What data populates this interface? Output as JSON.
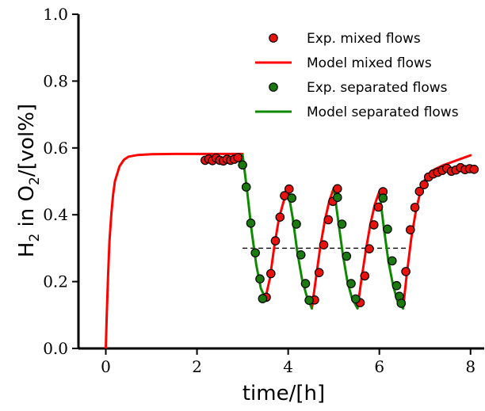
{
  "chart_data": {
    "type": "line",
    "xlabel": "time/[h]",
    "ylabel": {
      "prefix": "H",
      "sub1": "2",
      "mid": " in O",
      "sub2": "2",
      "suffix": "/[vol%]"
    },
    "xlim": [
      -0.6,
      8.3
    ],
    "ylim": [
      0.0,
      1.0
    ],
    "xticks": [
      0,
      2,
      4,
      6,
      8
    ],
    "xtick_labels": [
      "0",
      "2",
      "4",
      "6",
      "8"
    ],
    "yticks": [
      0.0,
      0.2,
      0.4,
      0.6,
      0.8,
      1.0
    ],
    "ytick_labels": [
      "0.0",
      "0.2",
      "0.4",
      "0.6",
      "0.8",
      "1.0"
    ],
    "grid": false,
    "legend_position": "top-right",
    "legend": [
      {
        "label": "Exp. mixed flows",
        "kind": "marker",
        "color": "#e8120f"
      },
      {
        "label": "Model mixed flows",
        "kind": "line",
        "color": "#ff0000"
      },
      {
        "label": "Exp. separated flows",
        "kind": "marker",
        "color": "#1a7a10"
      },
      {
        "label": "Model separated flows",
        "kind": "line",
        "color": "#0e8a00"
      }
    ],
    "reference_line": {
      "y": 0.3,
      "x": [
        3.0,
        6.6
      ],
      "style": "dashed",
      "color": "#000000"
    },
    "series": [
      {
        "id": "model_mixed",
        "kind": "line",
        "color": "#ff0000",
        "segments": [
          [
            [
              0.0,
              0.0
            ],
            [
              0.02,
              0.1
            ],
            [
              0.05,
              0.22
            ],
            [
              0.08,
              0.32
            ],
            [
              0.12,
              0.4
            ],
            [
              0.16,
              0.46
            ],
            [
              0.2,
              0.5
            ],
            [
              0.3,
              0.545
            ],
            [
              0.4,
              0.565
            ],
            [
              0.5,
              0.574
            ],
            [
              0.7,
              0.579
            ],
            [
              1.0,
              0.581
            ],
            [
              1.5,
              0.582
            ],
            [
              2.2,
              0.582
            ],
            [
              3.0,
              0.582
            ]
          ],
          [
            [
              3.5,
              0.15
            ],
            [
              3.6,
              0.21
            ],
            [
              3.7,
              0.31
            ],
            [
              3.8,
              0.39
            ],
            [
              3.9,
              0.44
            ],
            [
              4.0,
              0.47
            ]
          ],
          [
            [
              4.52,
              0.12
            ],
            [
              4.6,
              0.2
            ],
            [
              4.7,
              0.3
            ],
            [
              4.8,
              0.38
            ],
            [
              4.9,
              0.44
            ],
            [
              5.0,
              0.48
            ]
          ],
          [
            [
              5.52,
              0.12
            ],
            [
              5.6,
              0.2
            ],
            [
              5.7,
              0.29
            ],
            [
              5.8,
              0.37
            ],
            [
              5.9,
              0.43
            ],
            [
              6.0,
              0.47
            ]
          ],
          [
            [
              6.52,
              0.12
            ],
            [
              6.6,
              0.22
            ],
            [
              6.7,
              0.33
            ],
            [
              6.8,
              0.41
            ],
            [
              6.9,
              0.47
            ],
            [
              7.0,
              0.505
            ],
            [
              7.2,
              0.535
            ],
            [
              7.4,
              0.548
            ],
            [
              7.6,
              0.558
            ],
            [
              7.8,
              0.568
            ],
            [
              8.0,
              0.578
            ]
          ]
        ]
      },
      {
        "id": "model_separated",
        "kind": "line",
        "color": "#0e8a00",
        "segments": [
          [
            [
              3.0,
              0.58
            ],
            [
              3.1,
              0.47
            ],
            [
              3.2,
              0.35
            ],
            [
              3.3,
              0.25
            ],
            [
              3.4,
              0.18
            ],
            [
              3.5,
              0.15
            ]
          ],
          [
            [
              4.0,
              0.47
            ],
            [
              4.1,
              0.39
            ],
            [
              4.2,
              0.29
            ],
            [
              4.3,
              0.21
            ],
            [
              4.4,
              0.16
            ],
            [
              4.52,
              0.12
            ]
          ],
          [
            [
              5.0,
              0.48
            ],
            [
              5.1,
              0.38
            ],
            [
              5.2,
              0.28
            ],
            [
              5.3,
              0.2
            ],
            [
              5.4,
              0.15
            ],
            [
              5.52,
              0.12
            ]
          ],
          [
            [
              6.0,
              0.47
            ],
            [
              6.1,
              0.36
            ],
            [
              6.2,
              0.26
            ],
            [
              6.3,
              0.19
            ],
            [
              6.4,
              0.14
            ],
            [
              6.52,
              0.12
            ]
          ]
        ]
      },
      {
        "id": "exp_mixed",
        "kind": "scatter",
        "color": "#e8120f",
        "points": [
          [
            2.18,
            0.563
          ],
          [
            2.26,
            0.567
          ],
          [
            2.34,
            0.562
          ],
          [
            2.42,
            0.57
          ],
          [
            2.5,
            0.563
          ],
          [
            2.58,
            0.561
          ],
          [
            2.66,
            0.566
          ],
          [
            2.74,
            0.563
          ],
          [
            2.82,
            0.566
          ],
          [
            2.9,
            0.571
          ],
          [
            3.52,
            0.153
          ],
          [
            3.62,
            0.224
          ],
          [
            3.72,
            0.322
          ],
          [
            3.82,
            0.393
          ],
          [
            3.92,
            0.457
          ],
          [
            4.02,
            0.477
          ],
          [
            4.58,
            0.145
          ],
          [
            4.68,
            0.227
          ],
          [
            4.78,
            0.31
          ],
          [
            4.88,
            0.385
          ],
          [
            4.98,
            0.44
          ],
          [
            5.08,
            0.478
          ],
          [
            5.58,
            0.137
          ],
          [
            5.68,
            0.217
          ],
          [
            5.78,
            0.298
          ],
          [
            5.88,
            0.37
          ],
          [
            5.98,
            0.423
          ],
          [
            6.08,
            0.469
          ],
          [
            6.58,
            0.23
          ],
          [
            6.68,
            0.355
          ],
          [
            6.78,
            0.422
          ],
          [
            6.88,
            0.47
          ],
          [
            6.98,
            0.49
          ],
          [
            7.08,
            0.513
          ],
          [
            7.18,
            0.522
          ],
          [
            7.28,
            0.527
          ],
          [
            7.38,
            0.533
          ],
          [
            7.48,
            0.539
          ],
          [
            7.58,
            0.53
          ],
          [
            7.68,
            0.534
          ],
          [
            7.78,
            0.541
          ],
          [
            7.88,
            0.535
          ],
          [
            7.98,
            0.538
          ],
          [
            8.08,
            0.536
          ]
        ]
      },
      {
        "id": "exp_separated",
        "kind": "scatter",
        "color": "#1a7a10",
        "points": [
          [
            3.0,
            0.549
          ],
          [
            3.08,
            0.483
          ],
          [
            3.18,
            0.375
          ],
          [
            3.28,
            0.286
          ],
          [
            3.38,
            0.208
          ],
          [
            3.44,
            0.149
          ],
          [
            4.08,
            0.45
          ],
          [
            4.18,
            0.372
          ],
          [
            4.28,
            0.28
          ],
          [
            4.38,
            0.194
          ],
          [
            4.46,
            0.144
          ],
          [
            5.08,
            0.452
          ],
          [
            5.18,
            0.372
          ],
          [
            5.28,
            0.276
          ],
          [
            5.38,
            0.194
          ],
          [
            5.48,
            0.148
          ],
          [
            6.08,
            0.45
          ],
          [
            6.18,
            0.357
          ],
          [
            6.28,
            0.262
          ],
          [
            6.38,
            0.188
          ],
          [
            6.44,
            0.156
          ],
          [
            6.48,
            0.135
          ]
        ]
      }
    ]
  }
}
